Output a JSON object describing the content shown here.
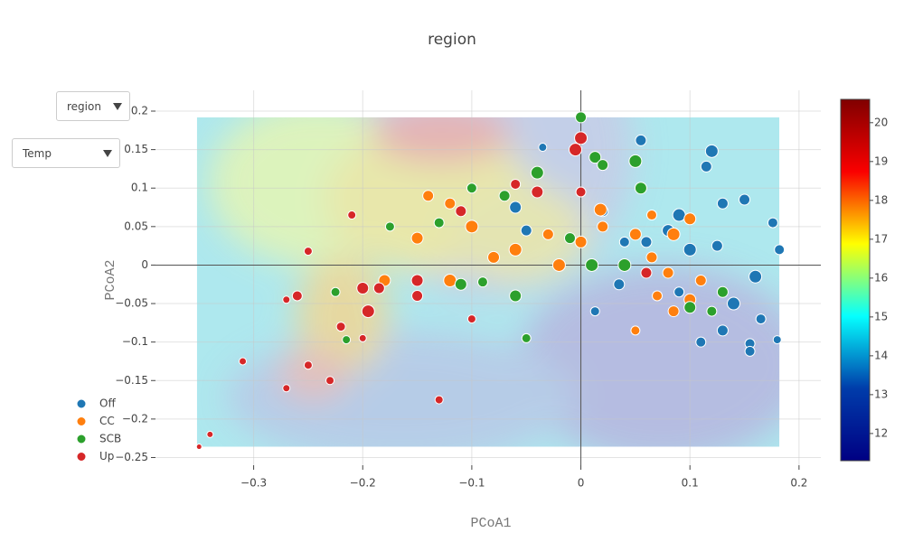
{
  "chart_data": {
    "type": "scatter",
    "title": "region",
    "x_label": "PCoA1",
    "y_label": "PCoA2",
    "dropdowns": [
      "region",
      "Temp"
    ],
    "xlim": [
      -0.39,
      0.22
    ],
    "ylim": [
      -0.26,
      0.227
    ],
    "xticks": [
      {
        "value": -0.3,
        "label": "−0.3"
      },
      {
        "value": -0.2,
        "label": "−0.2"
      },
      {
        "value": -0.1,
        "label": "−0.1"
      },
      0,
      0.1,
      0.2
    ],
    "yticks": [
      0.2,
      0.15,
      0.1,
      0.05,
      0,
      {
        "value": -0.05,
        "label": "−0.05"
      },
      {
        "value": -0.1,
        "label": "−0.1"
      },
      {
        "value": -0.15,
        "label": "−0.15"
      },
      {
        "value": -0.2,
        "label": "−0.2"
      },
      {
        "value": -0.25,
        "label": "−0.25"
      }
    ],
    "grid": true,
    "contour_extent": {
      "x": [
        -0.352,
        0.182
      ],
      "y": [
        -0.236,
        0.192
      ]
    },
    "colorbar": {
      "lim": [
        11.3,
        20.6
      ],
      "ticks": [
        12,
        13,
        14,
        15,
        16,
        17,
        18,
        19,
        20
      ],
      "colorscale": [
        "#000083",
        "#003caa",
        "#05ffff",
        "#ffff00",
        "#fa0000",
        "#800000"
      ]
    },
    "series": [
      {
        "name": "Off",
        "color": "#1f77b4",
        "x": [
          0.055,
          0.12,
          0.115,
          0.09,
          0.13,
          0.15,
          0.176,
          0.182,
          0.16,
          0.14,
          0.165,
          0.18,
          0.155,
          0.155,
          0.13,
          0.11,
          0.1,
          0.08,
          0.06,
          0.04,
          0.02,
          -0.06,
          -0.05,
          0.013,
          0.125,
          -0.035,
          0.035,
          0.09
        ],
        "y": [
          0.162,
          0.148,
          0.128,
          0.065,
          0.08,
          0.085,
          0.055,
          0.02,
          -0.015,
          -0.05,
          -0.07,
          -0.097,
          -0.102,
          -0.112,
          -0.085,
          -0.1,
          0.02,
          0.045,
          0.03,
          0.03,
          0.07,
          0.075,
          0.045,
          -0.06,
          0.025,
          0.153,
          -0.025,
          -0.035
        ],
        "size": [
          10,
          12,
          10,
          12,
          10,
          10,
          9,
          9,
          12,
          12,
          9,
          7,
          9,
          9,
          10,
          9,
          12,
          11,
          10,
          9,
          10,
          11,
          10,
          8,
          10,
          7,
          10,
          9
        ]
      },
      {
        "name": "CC",
        "color": "#ff7f0e",
        "x": [
          -0.15,
          -0.12,
          -0.1,
          -0.08,
          -0.06,
          -0.03,
          -0.02,
          0.0,
          0.02,
          0.05,
          0.065,
          0.085,
          0.1,
          0.08,
          0.07,
          0.11,
          0.085,
          0.05,
          0.1,
          -0.005,
          -0.14,
          -0.18,
          -0.12,
          0.018,
          0.065
        ],
        "y": [
          0.035,
          0.08,
          0.05,
          0.01,
          0.02,
          0.04,
          0.0,
          0.03,
          0.05,
          0.04,
          0.065,
          0.04,
          0.06,
          -0.01,
          -0.04,
          -0.02,
          -0.06,
          -0.085,
          -0.045,
          0.15,
          0.09,
          -0.02,
          -0.02,
          0.072,
          0.01
        ],
        "size": [
          11,
          10,
          12,
          11,
          12,
          10,
          12,
          11,
          10,
          11,
          9,
          12,
          11,
          10,
          9,
          10,
          10,
          8,
          11,
          11,
          10,
          11,
          12,
          12,
          10
        ]
      },
      {
        "name": "SCB",
        "color": "#2ca02c",
        "x": [
          0.0,
          0.013,
          -0.04,
          -0.1,
          -0.07,
          0.02,
          0.055,
          -0.06,
          -0.11,
          -0.13,
          -0.175,
          -0.225,
          -0.215,
          -0.05,
          0.01,
          0.04,
          0.1,
          0.13,
          -0.01,
          0.05,
          0.12,
          -0.09
        ],
        "y": [
          0.192,
          0.14,
          0.12,
          0.1,
          0.09,
          0.13,
          0.1,
          -0.04,
          -0.025,
          0.055,
          0.05,
          -0.035,
          -0.097,
          -0.095,
          0.0,
          0.0,
          -0.055,
          -0.035,
          0.035,
          0.135,
          -0.06,
          -0.022
        ],
        "size": [
          10,
          11,
          12,
          9,
          10,
          10,
          11,
          11,
          11,
          9,
          8,
          8,
          7,
          8,
          12,
          12,
          11,
          10,
          10,
          12,
          9,
          9
        ]
      },
      {
        "name": "Up",
        "color": "#d62728",
        "x": [
          -0.005,
          0.0,
          -0.04,
          -0.06,
          -0.11,
          -0.2,
          -0.185,
          -0.15,
          -0.26,
          -0.22,
          -0.195,
          -0.25,
          -0.21,
          -0.13,
          -0.25,
          -0.27,
          -0.31,
          -0.34,
          -0.35,
          -0.27,
          -0.15,
          -0.1,
          0.0,
          0.06,
          -0.23,
          -0.2
        ],
        "y": [
          0.15,
          0.165,
          0.095,
          0.105,
          0.07,
          -0.03,
          -0.03,
          -0.04,
          -0.04,
          -0.08,
          -0.06,
          0.018,
          0.065,
          -0.175,
          -0.13,
          -0.16,
          -0.125,
          -0.22,
          -0.236,
          -0.045,
          -0.02,
          -0.07,
          0.095,
          -0.01,
          -0.15,
          -0.095
        ],
        "size": [
          12,
          12,
          11,
          9,
          10,
          11,
          10,
          10,
          9,
          8,
          12,
          7,
          7,
          7,
          7,
          6,
          6,
          5,
          4,
          6,
          11,
          7,
          9,
          10,
          7,
          6
        ]
      }
    ]
  }
}
